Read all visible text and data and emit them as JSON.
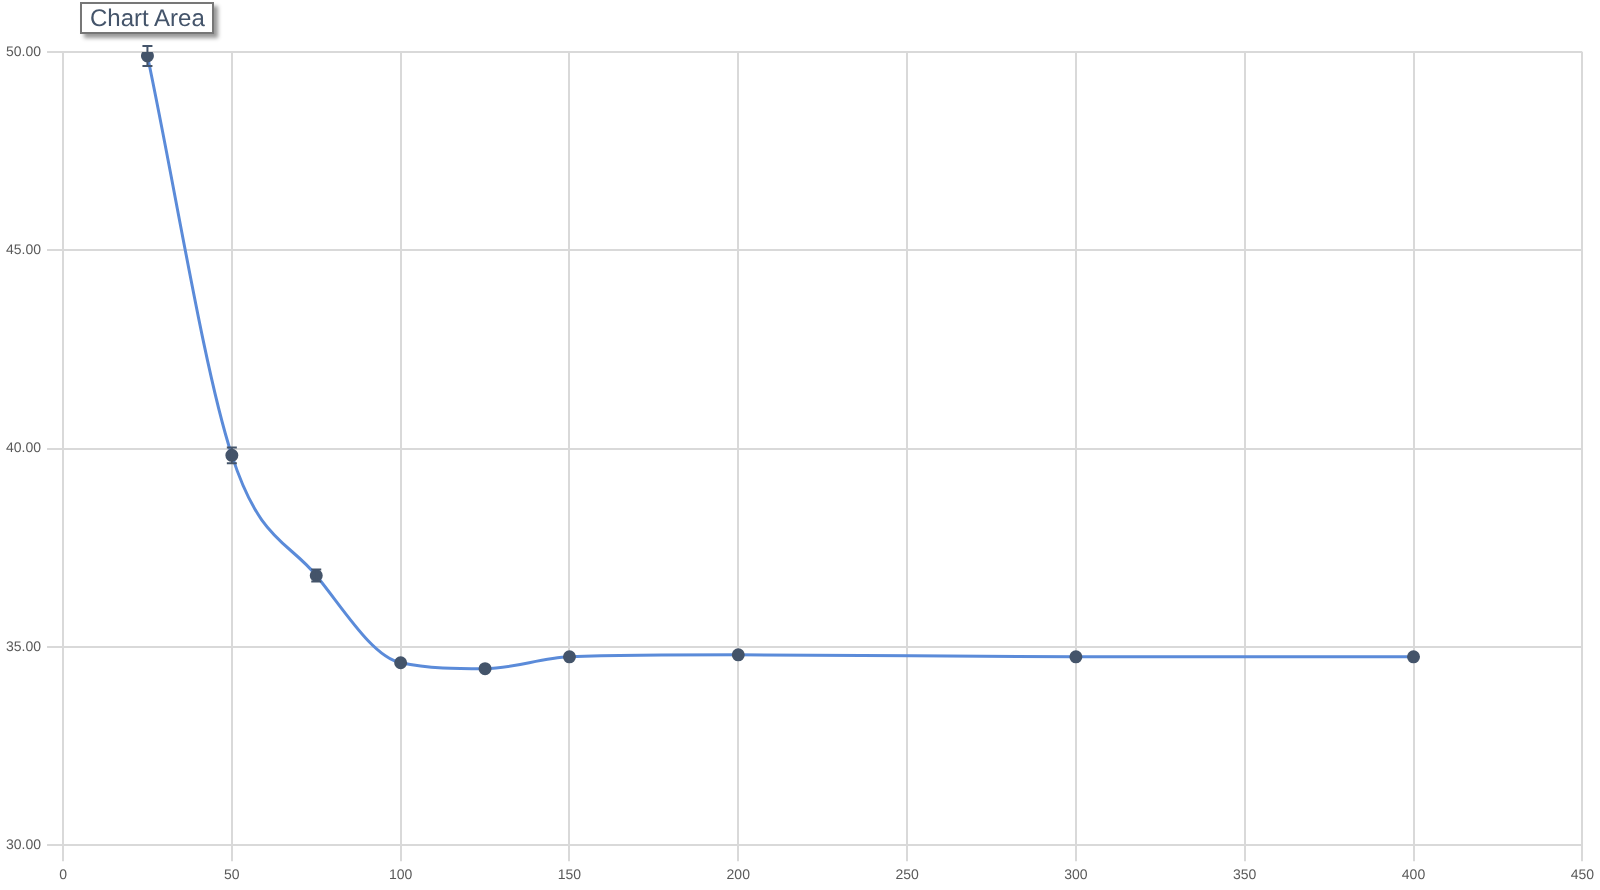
{
  "chart_data": {
    "type": "line",
    "x": [
      25,
      50,
      75,
      100,
      125,
      150,
      200,
      300,
      400
    ],
    "series": [
      {
        "color": "#5b8bd9",
        "values": [
          49.9,
          39.83,
          36.8,
          34.6,
          34.45,
          34.75,
          34.8,
          34.75,
          34.75
        ],
        "errors": [
          0.25,
          0.2,
          0.15,
          null,
          null,
          null,
          null,
          null,
          null
        ]
      }
    ],
    "xlim": [
      0,
      450
    ],
    "xticks": [
      0,
      50,
      100,
      150,
      200,
      250,
      300,
      350,
      400,
      450
    ],
    "ylim": [
      30,
      50
    ],
    "yticks": [
      {
        "value": 30,
        "label": "30.00"
      },
      {
        "value": 35,
        "label": "35.00"
      },
      {
        "value": 40,
        "label": "40.00"
      },
      {
        "value": 45,
        "label": "45.00"
      },
      {
        "value": 50,
        "label": "50.00"
      }
    ],
    "grid": true,
    "legend": false,
    "marker": "circle",
    "line_style": "solid",
    "annotations": [
      "Chart Area"
    ]
  }
}
